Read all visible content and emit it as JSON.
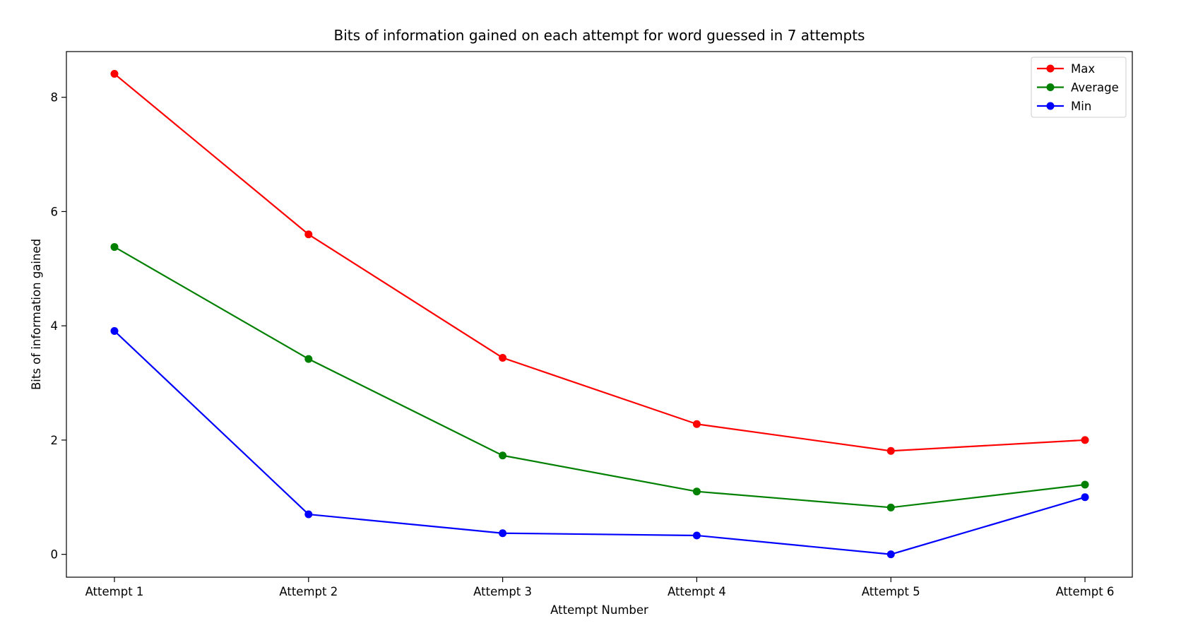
{
  "chart_data": {
    "type": "line",
    "title": "Bits of information gained on each attempt for word guessed in 7 attempts",
    "xlabel": "Attempt Number",
    "ylabel": "Bits of information gained",
    "categories": [
      "Attempt 1",
      "Attempt 2",
      "Attempt 3",
      "Attempt 4",
      "Attempt 5",
      "Attempt 6"
    ],
    "ylim": [
      -0.4,
      8.8
    ],
    "yticks": [
      0,
      2,
      4,
      6,
      8
    ],
    "grid": false,
    "legend_position": "upper right",
    "series": [
      {
        "name": "Max",
        "color": "#ff0000",
        "marker": "circle",
        "values": [
          8.41,
          5.6,
          3.44,
          2.28,
          1.81,
          2.0
        ]
      },
      {
        "name": "Average",
        "color": "#008000",
        "marker": "circle",
        "values": [
          5.38,
          3.42,
          1.73,
          1.1,
          0.82,
          1.22
        ]
      },
      {
        "name": "Min",
        "color": "#0000ff",
        "marker": "circle",
        "values": [
          3.91,
          0.7,
          0.37,
          0.33,
          0.0,
          1.0
        ]
      }
    ]
  }
}
